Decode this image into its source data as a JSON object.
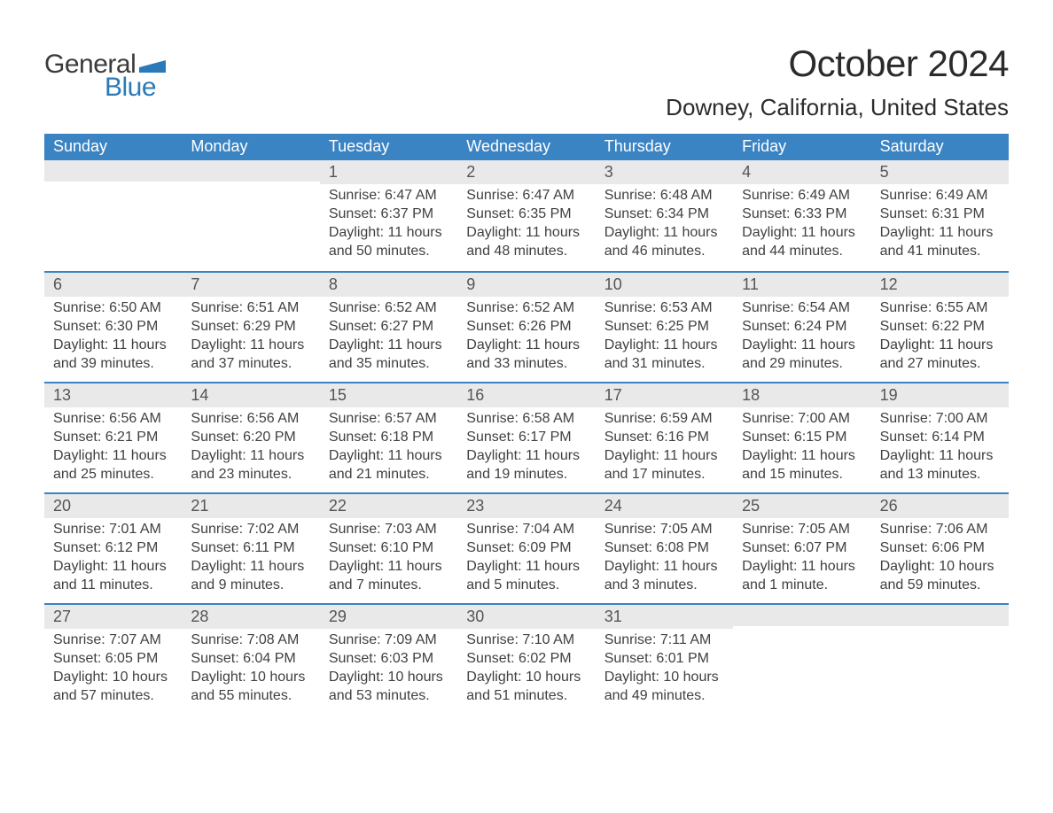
{
  "logo": {
    "text_general": "General",
    "text_blue": "Blue",
    "flag_color": "#2a7ab9"
  },
  "title": "October 2024",
  "location": "Downey, California, United States",
  "colors": {
    "header_bg": "#3b84c4",
    "header_text": "#ffffff",
    "daynum_bg": "#e9e9e9",
    "week_divider": "#3b84c4",
    "body_text": "#404040",
    "page_bg": "#ffffff",
    "logo_blue": "#2a7ab9"
  },
  "day_headers": [
    "Sunday",
    "Monday",
    "Tuesday",
    "Wednesday",
    "Thursday",
    "Friday",
    "Saturday"
  ],
  "labels": {
    "sunrise": "Sunrise:",
    "sunset": "Sunset:",
    "daylight": "Daylight:"
  },
  "weeks": [
    [
      {
        "day": "",
        "empty": true
      },
      {
        "day": "",
        "empty": true
      },
      {
        "day": "1",
        "sunrise": "6:47 AM",
        "sunset": "6:37 PM",
        "daylight": "11 hours and 50 minutes."
      },
      {
        "day": "2",
        "sunrise": "6:47 AM",
        "sunset": "6:35 PM",
        "daylight": "11 hours and 48 minutes."
      },
      {
        "day": "3",
        "sunrise": "6:48 AM",
        "sunset": "6:34 PM",
        "daylight": "11 hours and 46 minutes."
      },
      {
        "day": "4",
        "sunrise": "6:49 AM",
        "sunset": "6:33 PM",
        "daylight": "11 hours and 44 minutes."
      },
      {
        "day": "5",
        "sunrise": "6:49 AM",
        "sunset": "6:31 PM",
        "daylight": "11 hours and 41 minutes."
      }
    ],
    [
      {
        "day": "6",
        "sunrise": "6:50 AM",
        "sunset": "6:30 PM",
        "daylight": "11 hours and 39 minutes."
      },
      {
        "day": "7",
        "sunrise": "6:51 AM",
        "sunset": "6:29 PM",
        "daylight": "11 hours and 37 minutes."
      },
      {
        "day": "8",
        "sunrise": "6:52 AM",
        "sunset": "6:27 PM",
        "daylight": "11 hours and 35 minutes."
      },
      {
        "day": "9",
        "sunrise": "6:52 AM",
        "sunset": "6:26 PM",
        "daylight": "11 hours and 33 minutes."
      },
      {
        "day": "10",
        "sunrise": "6:53 AM",
        "sunset": "6:25 PM",
        "daylight": "11 hours and 31 minutes."
      },
      {
        "day": "11",
        "sunrise": "6:54 AM",
        "sunset": "6:24 PM",
        "daylight": "11 hours and 29 minutes."
      },
      {
        "day": "12",
        "sunrise": "6:55 AM",
        "sunset": "6:22 PM",
        "daylight": "11 hours and 27 minutes."
      }
    ],
    [
      {
        "day": "13",
        "sunrise": "6:56 AM",
        "sunset": "6:21 PM",
        "daylight": "11 hours and 25 minutes."
      },
      {
        "day": "14",
        "sunrise": "6:56 AM",
        "sunset": "6:20 PM",
        "daylight": "11 hours and 23 minutes."
      },
      {
        "day": "15",
        "sunrise": "6:57 AM",
        "sunset": "6:18 PM",
        "daylight": "11 hours and 21 minutes."
      },
      {
        "day": "16",
        "sunrise": "6:58 AM",
        "sunset": "6:17 PM",
        "daylight": "11 hours and 19 minutes."
      },
      {
        "day": "17",
        "sunrise": "6:59 AM",
        "sunset": "6:16 PM",
        "daylight": "11 hours and 17 minutes."
      },
      {
        "day": "18",
        "sunrise": "7:00 AM",
        "sunset": "6:15 PM",
        "daylight": "11 hours and 15 minutes."
      },
      {
        "day": "19",
        "sunrise": "7:00 AM",
        "sunset": "6:14 PM",
        "daylight": "11 hours and 13 minutes."
      }
    ],
    [
      {
        "day": "20",
        "sunrise": "7:01 AM",
        "sunset": "6:12 PM",
        "daylight": "11 hours and 11 minutes."
      },
      {
        "day": "21",
        "sunrise": "7:02 AM",
        "sunset": "6:11 PM",
        "daylight": "11 hours and 9 minutes."
      },
      {
        "day": "22",
        "sunrise": "7:03 AM",
        "sunset": "6:10 PM",
        "daylight": "11 hours and 7 minutes."
      },
      {
        "day": "23",
        "sunrise": "7:04 AM",
        "sunset": "6:09 PM",
        "daylight": "11 hours and 5 minutes."
      },
      {
        "day": "24",
        "sunrise": "7:05 AM",
        "sunset": "6:08 PM",
        "daylight": "11 hours and 3 minutes."
      },
      {
        "day": "25",
        "sunrise": "7:05 AM",
        "sunset": "6:07 PM",
        "daylight": "11 hours and 1 minute."
      },
      {
        "day": "26",
        "sunrise": "7:06 AM",
        "sunset": "6:06 PM",
        "daylight": "10 hours and 59 minutes."
      }
    ],
    [
      {
        "day": "27",
        "sunrise": "7:07 AM",
        "sunset": "6:05 PM",
        "daylight": "10 hours and 57 minutes."
      },
      {
        "day": "28",
        "sunrise": "7:08 AM",
        "sunset": "6:04 PM",
        "daylight": "10 hours and 55 minutes."
      },
      {
        "day": "29",
        "sunrise": "7:09 AM",
        "sunset": "6:03 PM",
        "daylight": "10 hours and 53 minutes."
      },
      {
        "day": "30",
        "sunrise": "7:10 AM",
        "sunset": "6:02 PM",
        "daylight": "10 hours and 51 minutes."
      },
      {
        "day": "31",
        "sunrise": "7:11 AM",
        "sunset": "6:01 PM",
        "daylight": "10 hours and 49 minutes."
      },
      {
        "day": "",
        "empty": true
      },
      {
        "day": "",
        "empty": true
      }
    ]
  ]
}
